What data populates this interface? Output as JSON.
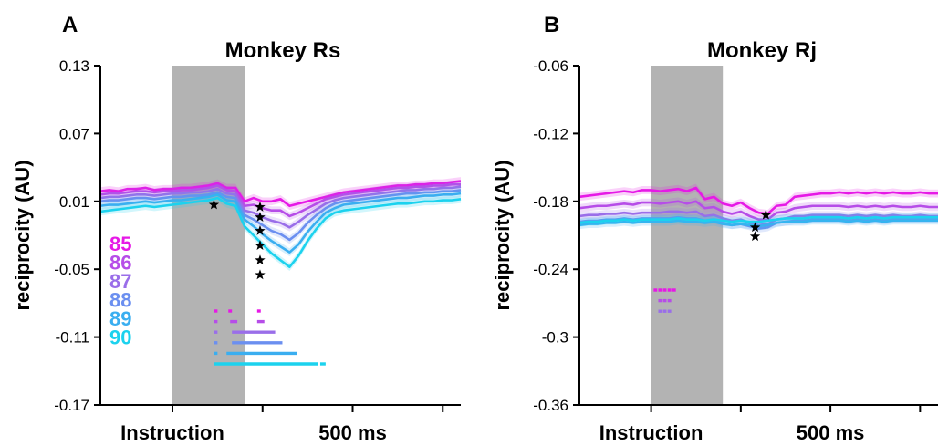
{
  "chart_data": [
    {
      "type": "line",
      "panel": "A",
      "title": "Monkey Rs",
      "ylabel": "reciprocity (AU)",
      "xticklabels": [
        "Instruction",
        "500 ms"
      ],
      "yticks": [
        0.13,
        0.07,
        0.01,
        -0.05,
        -0.11,
        -0.17
      ],
      "ylim": [
        -0.17,
        0.13
      ],
      "xlim": [
        -200,
        800
      ],
      "instruction_shade_ms": [
        0,
        200
      ],
      "x": [
        -200,
        -175,
        -150,
        -125,
        -100,
        -75,
        -50,
        -25,
        0,
        25,
        50,
        75,
        100,
        125,
        150,
        175,
        200,
        225,
        250,
        275,
        300,
        325,
        350,
        375,
        400,
        425,
        450,
        475,
        500,
        525,
        550,
        575,
        600,
        625,
        650,
        675,
        700,
        725,
        750,
        775,
        800
      ],
      "series": [
        {
          "name": "85",
          "color": "#e619e6",
          "values": [
            0.019,
            0.02,
            0.019,
            0.021,
            0.021,
            0.022,
            0.02,
            0.021,
            0.021,
            0.022,
            0.022,
            0.023,
            0.024,
            0.026,
            0.022,
            0.022,
            0.01,
            0.013,
            0.01,
            0.01,
            0.012,
            0.006,
            0.008,
            0.01,
            0.012,
            0.014,
            0.016,
            0.018,
            0.019,
            0.02,
            0.021,
            0.022,
            0.023,
            0.024,
            0.024,
            0.025,
            0.025,
            0.026,
            0.026,
            0.027,
            0.028
          ]
        },
        {
          "name": "86",
          "color": "#b64de8",
          "values": [
            0.016,
            0.017,
            0.017,
            0.018,
            0.019,
            0.019,
            0.018,
            0.019,
            0.019,
            0.02,
            0.02,
            0.021,
            0.022,
            0.024,
            0.02,
            0.019,
            0.006,
            0.007,
            0.004,
            0.002,
            0.002,
            -0.003,
            0.0,
            0.004,
            0.008,
            0.012,
            0.014,
            0.016,
            0.017,
            0.018,
            0.019,
            0.02,
            0.021,
            0.022,
            0.022,
            0.023,
            0.023,
            0.024,
            0.024,
            0.025,
            0.025
          ]
        },
        {
          "name": "87",
          "color": "#9a6ee9",
          "values": [
            0.013,
            0.014,
            0.014,
            0.015,
            0.016,
            0.016,
            0.015,
            0.016,
            0.017,
            0.017,
            0.018,
            0.018,
            0.019,
            0.021,
            0.017,
            0.016,
            0.002,
            0.0,
            -0.004,
            -0.007,
            -0.009,
            -0.013,
            -0.008,
            -0.002,
            0.003,
            0.008,
            0.011,
            0.013,
            0.014,
            0.015,
            0.016,
            0.017,
            0.018,
            0.019,
            0.02,
            0.02,
            0.021,
            0.021,
            0.022,
            0.022,
            0.023
          ]
        },
        {
          "name": "88",
          "color": "#6b8ff0",
          "values": [
            0.01,
            0.011,
            0.011,
            0.012,
            0.013,
            0.013,
            0.012,
            0.013,
            0.014,
            0.014,
            0.015,
            0.015,
            0.016,
            0.018,
            0.014,
            0.013,
            -0.002,
            -0.006,
            -0.011,
            -0.016,
            -0.019,
            -0.024,
            -0.018,
            -0.009,
            -0.002,
            0.004,
            0.008,
            0.01,
            0.011,
            0.012,
            0.013,
            0.014,
            0.015,
            0.016,
            0.017,
            0.017,
            0.018,
            0.018,
            0.019,
            0.019,
            0.02
          ]
        },
        {
          "name": "89",
          "color": "#3aaef0",
          "values": [
            0.006,
            0.007,
            0.007,
            0.008,
            0.009,
            0.01,
            0.009,
            0.01,
            0.011,
            0.011,
            0.012,
            0.013,
            0.014,
            0.016,
            0.011,
            0.01,
            -0.006,
            -0.012,
            -0.019,
            -0.025,
            -0.03,
            -0.035,
            -0.028,
            -0.017,
            -0.008,
            0.0,
            0.004,
            0.007,
            0.008,
            0.009,
            0.01,
            0.011,
            0.012,
            0.013,
            0.013,
            0.014,
            0.015,
            0.015,
            0.016,
            0.016,
            0.017
          ]
        },
        {
          "name": "90",
          "color": "#1cd2ee",
          "values": [
            0.001,
            0.002,
            0.003,
            0.004,
            0.005,
            0.006,
            0.005,
            0.006,
            0.007,
            0.008,
            0.009,
            0.01,
            0.011,
            0.013,
            0.008,
            0.006,
            -0.012,
            -0.02,
            -0.028,
            -0.036,
            -0.042,
            -0.048,
            -0.038,
            -0.025,
            -0.014,
            -0.005,
            0.0,
            0.002,
            0.003,
            0.004,
            0.005,
            0.006,
            0.007,
            0.008,
            0.008,
            0.009,
            0.01,
            0.01,
            0.011,
            0.011,
            0.012
          ]
        }
      ],
      "markers": [
        {
          "x": 115,
          "y": 0.007
        },
        {
          "x": 243,
          "y": 0.005
        },
        {
          "x": 243,
          "y": -0.004
        },
        {
          "x": 243,
          "y": -0.016
        },
        {
          "x": 243,
          "y": -0.029
        },
        {
          "x": 243,
          "y": -0.042
        },
        {
          "x": 243,
          "y": -0.055
        }
      ],
      "significance_bars": [
        {
          "series": "85",
          "segments": [
            [
              115,
              125
            ],
            [
              155,
              165
            ],
            [
              235,
              245
            ]
          ]
        },
        {
          "series": "86",
          "segments": [
            [
              115,
              125
            ],
            [
              160,
              180
            ],
            [
              235,
              255
            ]
          ]
        },
        {
          "series": "87",
          "segments": [
            [
              115,
              125
            ],
            [
              165,
              285
            ]
          ]
        },
        {
          "series": "88",
          "segments": [
            [
              115,
              125
            ],
            [
              165,
              305
            ]
          ]
        },
        {
          "series": "89",
          "segments": [
            [
              115,
              125
            ],
            [
              150,
              345
            ]
          ]
        },
        {
          "series": "90",
          "segments": [
            [
              115,
              405
            ],
            [
              410,
              425
            ]
          ]
        }
      ]
    },
    {
      "type": "line",
      "panel": "B",
      "title": "Monkey Rj",
      "ylabel": "reciprocity (AU)",
      "xticklabels": [
        "Instruction",
        "500 ms"
      ],
      "yticks": [
        -0.06,
        -0.12,
        -0.18,
        -0.24,
        -0.3,
        -0.36
      ],
      "ylim": [
        -0.36,
        -0.06
      ],
      "xlim": [
        -200,
        800
      ],
      "instruction_shade_ms": [
        0,
        200
      ],
      "x": [
        -200,
        -175,
        -150,
        -125,
        -100,
        -75,
        -50,
        -25,
        0,
        25,
        50,
        75,
        100,
        125,
        150,
        175,
        200,
        225,
        250,
        275,
        300,
        325,
        350,
        375,
        400,
        425,
        450,
        475,
        500,
        525,
        550,
        575,
        600,
        625,
        650,
        675,
        700,
        725,
        750,
        775,
        800
      ],
      "series": [
        {
          "name": "85",
          "color": "#e619e6",
          "values": [
            -0.176,
            -0.175,
            -0.174,
            -0.173,
            -0.172,
            -0.171,
            -0.172,
            -0.17,
            -0.17,
            -0.171,
            -0.17,
            -0.169,
            -0.171,
            -0.168,
            -0.178,
            -0.176,
            -0.182,
            -0.184,
            -0.181,
            -0.186,
            -0.19,
            -0.191,
            -0.184,
            -0.183,
            -0.176,
            -0.175,
            -0.174,
            -0.173,
            -0.173,
            -0.172,
            -0.173,
            -0.172,
            -0.173,
            -0.172,
            -0.173,
            -0.172,
            -0.173,
            -0.173,
            -0.172,
            -0.173,
            -0.173
          ]
        },
        {
          "name": "86",
          "color": "#b64de8",
          "values": [
            -0.186,
            -0.185,
            -0.184,
            -0.184,
            -0.183,
            -0.182,
            -0.183,
            -0.181,
            -0.181,
            -0.182,
            -0.181,
            -0.18,
            -0.182,
            -0.18,
            -0.186,
            -0.185,
            -0.189,
            -0.191,
            -0.189,
            -0.193,
            -0.196,
            -0.196,
            -0.19,
            -0.189,
            -0.186,
            -0.185,
            -0.184,
            -0.184,
            -0.184,
            -0.184,
            -0.185,
            -0.184,
            -0.185,
            -0.184,
            -0.185,
            -0.184,
            -0.185,
            -0.185,
            -0.184,
            -0.185,
            -0.185
          ]
        },
        {
          "name": "87",
          "color": "#9a6ee9",
          "values": [
            -0.193,
            -0.192,
            -0.192,
            -0.191,
            -0.191,
            -0.19,
            -0.191,
            -0.19,
            -0.19,
            -0.19,
            -0.189,
            -0.189,
            -0.19,
            -0.189,
            -0.193,
            -0.192,
            -0.195,
            -0.197,
            -0.196,
            -0.199,
            -0.201,
            -0.2,
            -0.196,
            -0.195,
            -0.193,
            -0.193,
            -0.192,
            -0.192,
            -0.192,
            -0.192,
            -0.193,
            -0.192,
            -0.193,
            -0.192,
            -0.193,
            -0.192,
            -0.193,
            -0.193,
            -0.192,
            -0.193,
            -0.193
          ]
        },
        {
          "name": "88",
          "color": "#6b8ff0",
          "values": [
            -0.198,
            -0.197,
            -0.197,
            -0.196,
            -0.196,
            -0.195,
            -0.196,
            -0.195,
            -0.195,
            -0.195,
            -0.195,
            -0.194,
            -0.195,
            -0.195,
            -0.197,
            -0.196,
            -0.199,
            -0.201,
            -0.2,
            -0.202,
            -0.204,
            -0.203,
            -0.199,
            -0.198,
            -0.197,
            -0.197,
            -0.196,
            -0.196,
            -0.196,
            -0.196,
            -0.197,
            -0.196,
            -0.197,
            -0.196,
            -0.197,
            -0.196,
            -0.196,
            -0.196,
            -0.196,
            -0.196,
            -0.196
          ]
        },
        {
          "name": "89",
          "color": "#3aaef0",
          "values": [
            -0.201,
            -0.2,
            -0.2,
            -0.199,
            -0.199,
            -0.198,
            -0.199,
            -0.198,
            -0.198,
            -0.198,
            -0.198,
            -0.197,
            -0.198,
            -0.198,
            -0.199,
            -0.198,
            -0.2,
            -0.201,
            -0.2,
            -0.201,
            -0.202,
            -0.201,
            -0.199,
            -0.198,
            -0.198,
            -0.198,
            -0.197,
            -0.197,
            -0.197,
            -0.197,
            -0.198,
            -0.197,
            -0.198,
            -0.197,
            -0.198,
            -0.197,
            -0.197,
            -0.197,
            -0.197,
            -0.197,
            -0.197
          ]
        },
        {
          "name": "90",
          "color": "#1cd2ee",
          "values": [
            -0.199,
            -0.198,
            -0.198,
            -0.197,
            -0.197,
            -0.196,
            -0.197,
            -0.196,
            -0.196,
            -0.196,
            -0.196,
            -0.195,
            -0.196,
            -0.196,
            -0.197,
            -0.196,
            -0.197,
            -0.198,
            -0.197,
            -0.198,
            -0.198,
            -0.197,
            -0.196,
            -0.195,
            -0.195,
            -0.195,
            -0.194,
            -0.194,
            -0.194,
            -0.194,
            -0.195,
            -0.194,
            -0.195,
            -0.194,
            -0.195,
            -0.194,
            -0.194,
            -0.194,
            -0.194,
            -0.194,
            -0.194
          ]
        }
      ],
      "markers": [
        {
          "x": 290,
          "y": -0.203
        },
        {
          "x": 290,
          "y": -0.211
        },
        {
          "x": 320,
          "y": -0.192
        }
      ],
      "significance_bars": [
        {
          "series": "85",
          "segments": [
            [
              7,
              17
            ],
            [
              20,
              30
            ],
            [
              33,
              43
            ],
            [
              46,
              56
            ],
            [
              59,
              69
            ]
          ]
        },
        {
          "series": "86",
          "segments": [
            [
              20,
              30
            ],
            [
              33,
              43
            ],
            [
              46,
              56
            ]
          ]
        },
        {
          "series": "87",
          "segments": [
            [
              20,
              30
            ],
            [
              33,
              43
            ],
            [
              46,
              56
            ]
          ]
        }
      ]
    }
  ]
}
